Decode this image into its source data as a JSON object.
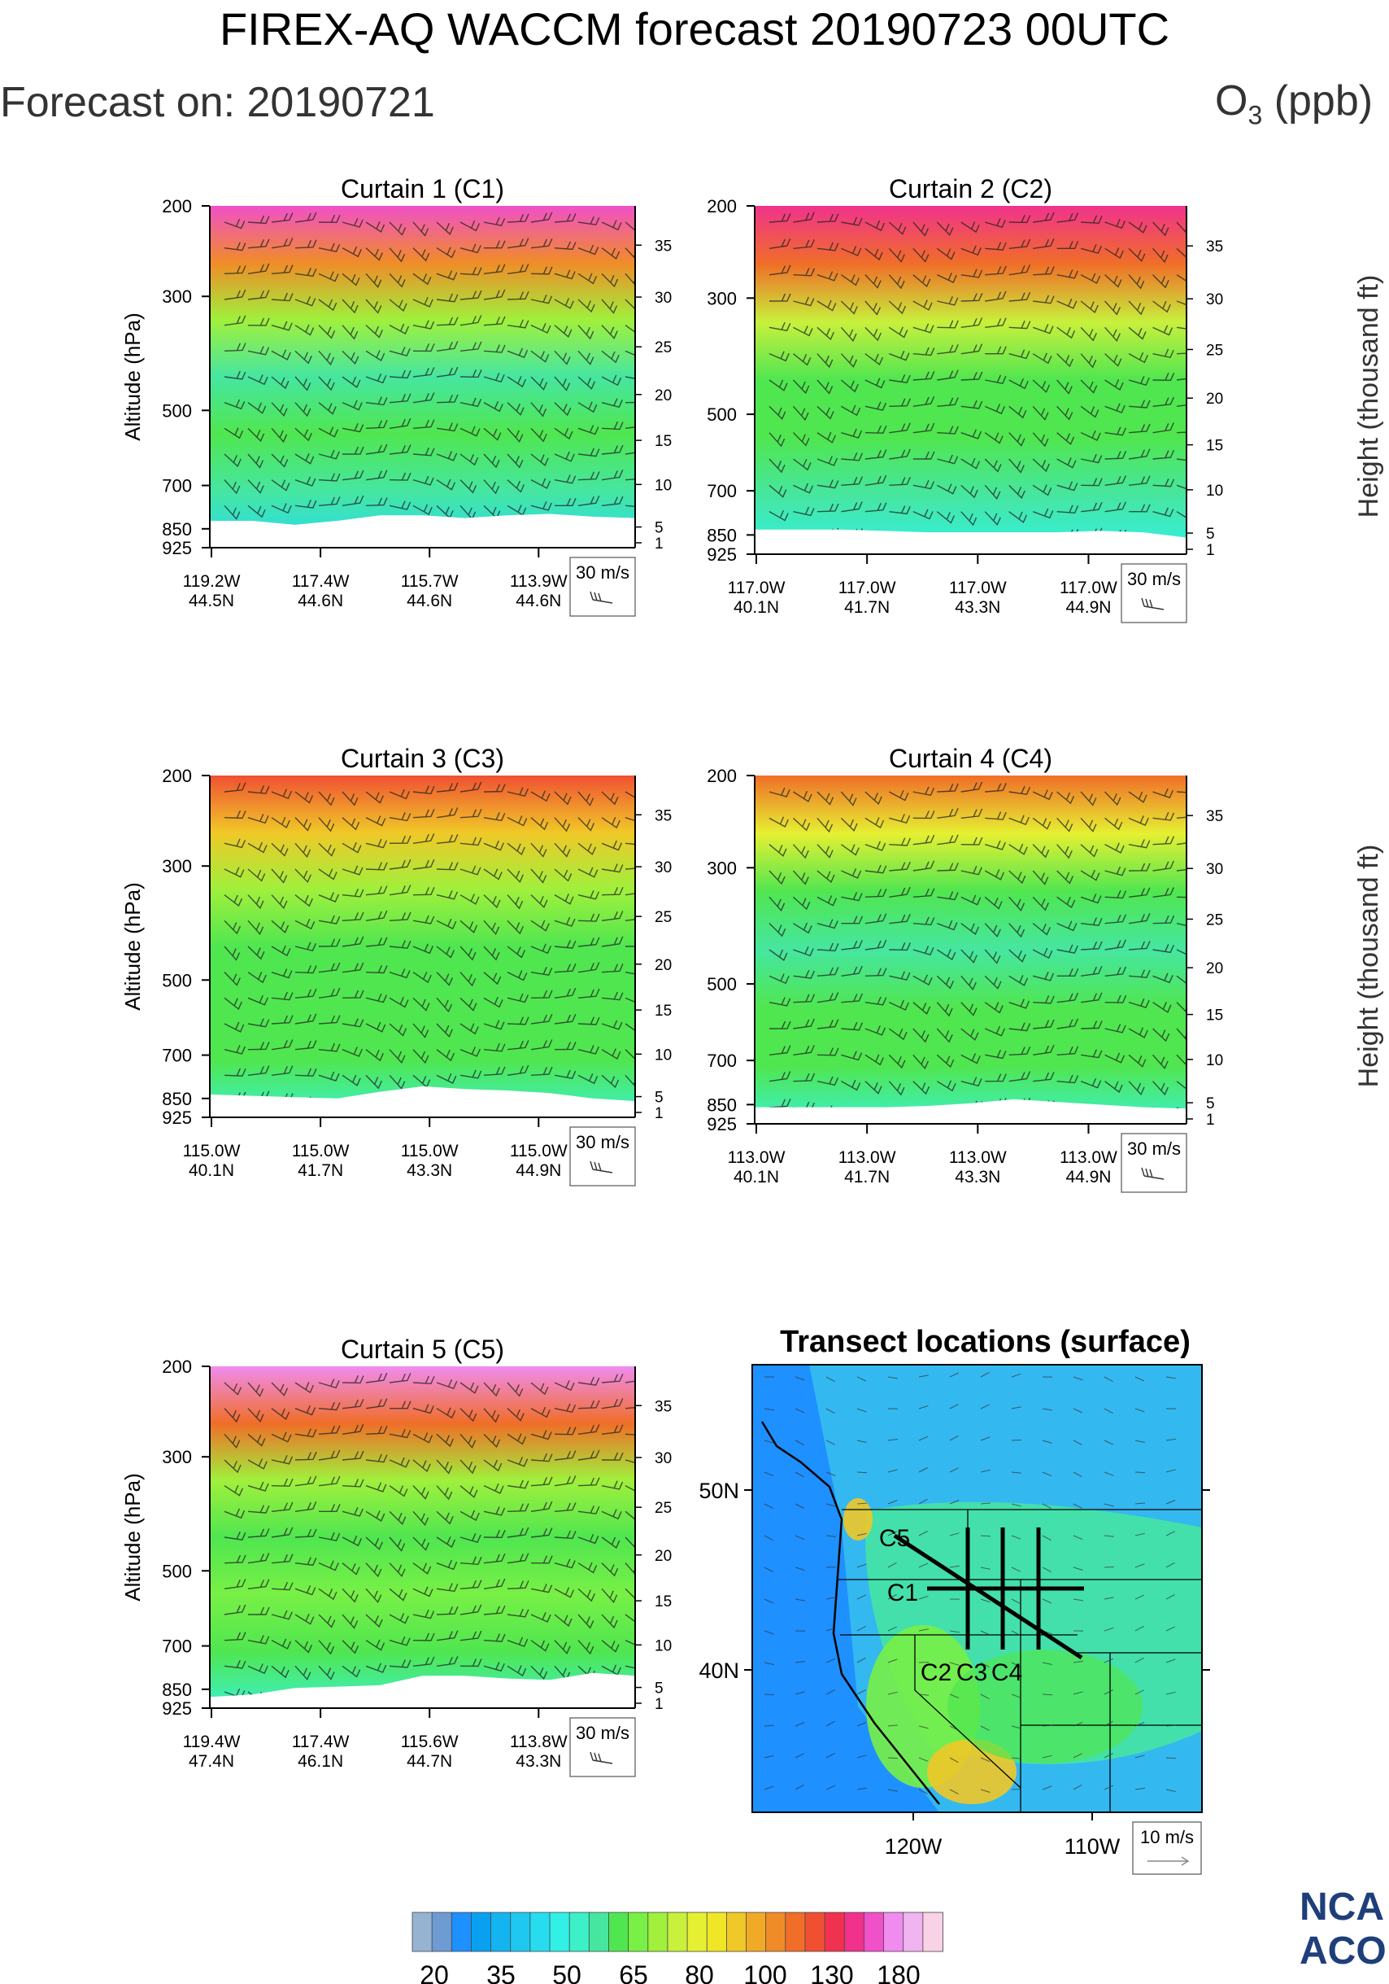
{
  "header": {
    "title": "FIREX-AQ WACCM forecast 20190723 00UTC",
    "forecast_on": "Forecast on: 20190721",
    "species_prefix": "O",
    "species_sub": "3",
    "species_unit": " (ppb)"
  },
  "logo": {
    "line1": "NCA",
    "line2": "ACO"
  },
  "shared": {
    "ylabel": "Altitude (hPa)",
    "y2label": "Height (thousand ft)",
    "p_ticks": [
      "200",
      "300",
      "500",
      "700",
      "850",
      "925"
    ],
    "p_values": [
      200,
      300,
      500,
      700,
      850,
      925
    ],
    "h_ticks": [
      "35",
      "30",
      "25",
      "20",
      "15",
      "10",
      "5",
      "1"
    ],
    "h_values": [
      35,
      30,
      25,
      20,
      15,
      10,
      5,
      1
    ],
    "ref_vector": "30 m/s",
    "ylim": [
      200,
      925
    ]
  },
  "colorbar": {
    "labels": [
      "20",
      "35",
      "50",
      "65",
      "80",
      "100",
      "130",
      "180"
    ],
    "colors": [
      "#96b4d2",
      "#6e9bd2",
      "#1e90ff",
      "#0aa0f0",
      "#14b4f0",
      "#1ec8f0",
      "#28dcf0",
      "#32f0e6",
      "#3cf0c8",
      "#46e6a0",
      "#50e650",
      "#78f046",
      "#a0f03c",
      "#c8f03c",
      "#e6f032",
      "#f0e628",
      "#f0c828",
      "#f0aa28",
      "#f08c28",
      "#f06e28",
      "#f05032",
      "#f03250",
      "#f0328c",
      "#f050c8",
      "#f08cf0",
      "#f0b4f0",
      "#f8d2e6"
    ]
  },
  "map": {
    "title": "Transect locations (surface)",
    "lat_ticks": [
      "50N",
      "40N"
    ],
    "lon_ticks": [
      "120W",
      "110W"
    ],
    "ref_vector": "10 m/s",
    "transect_labels": [
      "C5",
      "C1",
      "C2",
      "C3",
      "C4"
    ]
  },
  "chart_data": [
    {
      "type": "heatmap",
      "title": "Curtain 1 (C1)",
      "xticks": [
        [
          "119.2W",
          "44.5N"
        ],
        [
          "117.4W",
          "44.6N"
        ],
        [
          "115.7W",
          "44.6N"
        ],
        [
          "113.9W",
          "44.6N"
        ]
      ],
      "ylim": [
        200,
        925
      ],
      "ozone_profile_ppb": [
        140,
        95,
        70,
        58,
        62,
        58,
        45
      ],
      "terrain_hPa": [
        820,
        820,
        835,
        820,
        800,
        800,
        810,
        800,
        795,
        805,
        810
      ]
    },
    {
      "type": "heatmap",
      "title": "Curtain 2 (C2)",
      "xticks": [
        [
          "117.0W",
          "40.1N"
        ],
        [
          "117.0W",
          "41.7N"
        ],
        [
          "117.0W",
          "43.3N"
        ],
        [
          "117.0W",
          "44.9N"
        ]
      ],
      "ylim": [
        200,
        925
      ],
      "ozone_profile_ppb": [
        130,
        100,
        72,
        60,
        62,
        58,
        48
      ],
      "terrain_hPa": [
        830,
        830,
        830,
        835,
        840,
        840,
        840,
        840,
        835,
        840,
        860
      ]
    },
    {
      "type": "heatmap",
      "title": "Curtain 3 (C3)",
      "xticks": [
        [
          "115.0W",
          "40.1N"
        ],
        [
          "115.0W",
          "41.7N"
        ],
        [
          "115.0W",
          "43.3N"
        ],
        [
          "115.0W",
          "44.9N"
        ]
      ],
      "ylim": [
        200,
        925
      ],
      "ozone_profile_ppb": [
        110,
        85,
        68,
        60,
        60,
        60,
        52
      ],
      "terrain_hPa": [
        835,
        840,
        845,
        850,
        825,
        805,
        815,
        820,
        830,
        850,
        860
      ]
    },
    {
      "type": "heatmap",
      "title": "Curtain 4 (C4)",
      "xticks": [
        [
          "113.0W",
          "40.1N"
        ],
        [
          "113.0W",
          "41.7N"
        ],
        [
          "113.0W",
          "43.3N"
        ],
        [
          "113.0W",
          "44.9N"
        ]
      ],
      "ylim": [
        200,
        925
      ],
      "ozone_profile_ppb": [
        100,
        78,
        62,
        58,
        62,
        60,
        52
      ],
      "terrain_hPa": [
        860,
        860,
        860,
        860,
        855,
        845,
        830,
        840,
        850,
        860,
        865
      ]
    },
    {
      "type": "heatmap",
      "title": "Curtain 5 (C5)",
      "xticks": [
        [
          "119.4W",
          "47.4N"
        ],
        [
          "117.4W",
          "46.1N"
        ],
        [
          "115.6W",
          "44.7N"
        ],
        [
          "113.8W",
          "43.3N"
        ]
      ],
      "ylim": [
        200,
        925
      ],
      "ozone_profile_ppb": [
        150,
        100,
        70,
        60,
        65,
        62,
        52
      ],
      "terrain_hPa": [
        880,
        870,
        845,
        840,
        835,
        800,
        800,
        810,
        815,
        790,
        800
      ]
    }
  ]
}
